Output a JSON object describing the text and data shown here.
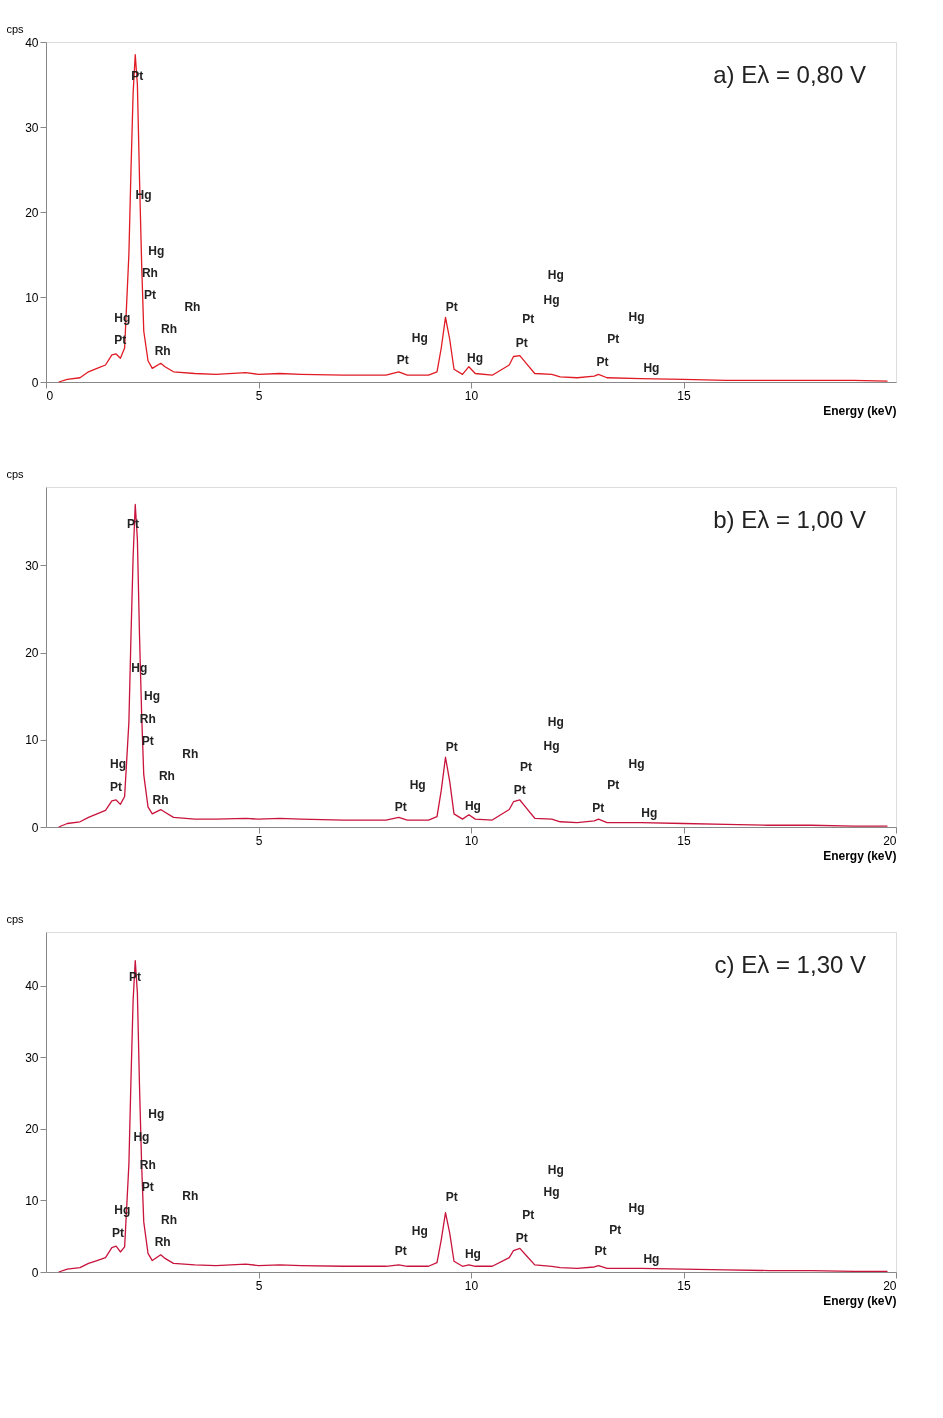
{
  "chart_data": [
    {
      "type": "line",
      "title": "a) Eλ = 0,80 V",
      "xlabel": "Energy (keV)",
      "ylabel": "cps",
      "xlim": [
        0,
        20
      ],
      "xticks": [
        0,
        5,
        10,
        15
      ],
      "ylim": [
        0,
        40
      ],
      "yticks": [
        0,
        10,
        20,
        30,
        40
      ],
      "grid": false,
      "marker": "none",
      "line_style": "solid",
      "series": [
        {
          "color": "#e01b24",
          "x": [
            0.3,
            0.5,
            0.8,
            1.0,
            1.2,
            1.4,
            1.55,
            1.65,
            1.75,
            1.85,
            1.95,
            2.0,
            2.05,
            2.1,
            2.15,
            2.2,
            2.25,
            2.3,
            2.4,
            2.5,
            2.7,
            2.8,
            3.0,
            3.5,
            4.0,
            4.7,
            5.0,
            5.5,
            6.0,
            7.0,
            8.0,
            8.3,
            8.5,
            9.0,
            9.2,
            9.3,
            9.4,
            9.5,
            9.6,
            9.8,
            9.95,
            10.1,
            10.5,
            10.9,
            11.0,
            11.15,
            11.3,
            11.5,
            11.9,
            12.1,
            12.5,
            12.9,
            13.0,
            13.2,
            14.0,
            15.0,
            16.0,
            17.0,
            18.0,
            19.0,
            19.8
          ],
          "values": [
            0,
            0.3,
            0.5,
            1.2,
            1.6,
            2.0,
            3.2,
            3.3,
            2.8,
            4,
            15,
            25,
            34,
            38.5,
            35,
            24,
            14,
            6,
            2.5,
            1.6,
            2.2,
            1.8,
            1.2,
            1.0,
            0.9,
            1.1,
            0.9,
            1.0,
            0.9,
            0.8,
            0.8,
            1.2,
            0.8,
            0.8,
            1.2,
            4,
            7.6,
            5,
            1.5,
            0.9,
            1.8,
            1.0,
            0.8,
            2.0,
            3.0,
            3.1,
            2.2,
            1.0,
            0.9,
            0.6,
            0.5,
            0.7,
            0.9,
            0.5,
            0.4,
            0.3,
            0.2,
            0.2,
            0.2,
            0.2,
            0.1
          ]
        }
      ],
      "annotations": [
        "Pt",
        "Hg",
        "Hg",
        "Rh",
        "Pt",
        "Rh",
        "Hg",
        "Rh",
        "Pt",
        "Rh",
        "Pt",
        "Hg",
        "Pt",
        "Hg",
        "Pt",
        "Pt",
        "Hg",
        "Hg",
        "Pt",
        "Pt",
        "Hg",
        "Hg"
      ]
    },
    {
      "type": "line",
      "title": "b) Eλ = 1,00 V",
      "xlabel": "Energy (keV)",
      "ylabel": "cps",
      "xlim": [
        0,
        20
      ],
      "xticks": [
        5,
        10,
        15,
        20
      ],
      "ylim": [
        0,
        39
      ],
      "yticks": [
        0,
        10,
        20,
        30
      ],
      "grid": false,
      "marker": "none",
      "line_style": "solid",
      "series": [
        {
          "color": "#c8143c",
          "x": [
            0.3,
            0.5,
            0.8,
            1.0,
            1.2,
            1.4,
            1.55,
            1.65,
            1.75,
            1.85,
            1.95,
            2.0,
            2.05,
            2.1,
            2.15,
            2.2,
            2.25,
            2.3,
            2.4,
            2.5,
            2.7,
            2.8,
            3.0,
            3.5,
            4.0,
            4.7,
            5.0,
            5.5,
            6.0,
            7.0,
            8.0,
            8.3,
            8.5,
            9.0,
            9.2,
            9.3,
            9.4,
            9.5,
            9.6,
            9.8,
            9.95,
            10.1,
            10.5,
            10.9,
            11.0,
            11.15,
            11.3,
            11.5,
            11.9,
            12.1,
            12.5,
            12.9,
            13.0,
            13.2,
            14.0,
            15.0,
            16.0,
            17.0,
            18.0,
            19.0,
            19.8
          ],
          "values": [
            0,
            0.4,
            0.6,
            1.1,
            1.5,
            1.9,
            3.0,
            3.1,
            2.6,
            3.5,
            12,
            22,
            31,
            37,
            33,
            22,
            13,
            6,
            2.3,
            1.5,
            2.0,
            1.7,
            1.1,
            0.9,
            0.9,
            1.0,
            0.9,
            1.0,
            0.9,
            0.8,
            0.8,
            1.1,
            0.8,
            0.8,
            1.2,
            4.2,
            8.0,
            5.2,
            1.5,
            0.9,
            1.4,
            0.9,
            0.8,
            2.0,
            2.9,
            3.1,
            2.2,
            1.0,
            0.9,
            0.6,
            0.5,
            0.7,
            0.9,
            0.5,
            0.5,
            0.4,
            0.3,
            0.2,
            0.2,
            0.1,
            0.1
          ]
        }
      ],
      "annotations": [
        "Pt",
        "Hg",
        "Hg",
        "Rh",
        "Pt",
        "Rh",
        "Hg",
        "Rh",
        "Pt",
        "Rh",
        "Pt",
        "Hg",
        "Pt",
        "Hg",
        "Pt",
        "Pt",
        "Hg",
        "Hg",
        "Pt",
        "Pt",
        "Hg",
        "Hg"
      ]
    },
    {
      "type": "line",
      "title": "c) Eλ = 1,30 V",
      "xlabel": "Energy (keV)",
      "ylabel": "cps",
      "xlim": [
        0,
        20
      ],
      "xticks": [
        5,
        10,
        15,
        20
      ],
      "ylim": [
        0,
        47.5
      ],
      "yticks": [
        0,
        10,
        20,
        30,
        40
      ],
      "grid": false,
      "marker": "none",
      "line_style": "solid",
      "series": [
        {
          "color": "#c8143c",
          "x": [
            0.3,
            0.5,
            0.8,
            1.0,
            1.2,
            1.4,
            1.55,
            1.65,
            1.75,
            1.85,
            1.95,
            2.0,
            2.05,
            2.1,
            2.15,
            2.2,
            2.25,
            2.3,
            2.4,
            2.5,
            2.7,
            2.8,
            3.0,
            3.5,
            4.0,
            4.7,
            5.0,
            5.5,
            6.0,
            7.0,
            8.0,
            8.3,
            8.5,
            9.0,
            9.2,
            9.3,
            9.4,
            9.5,
            9.6,
            9.8,
            9.95,
            10.1,
            10.5,
            10.9,
            11.0,
            11.15,
            11.3,
            11.5,
            11.9,
            12.1,
            12.5,
            12.9,
            13.0,
            13.2,
            14.0,
            15.0,
            16.0,
            17.0,
            18.0,
            19.0,
            19.8
          ],
          "values": [
            0,
            0.4,
            0.6,
            1.2,
            1.6,
            2.0,
            3.4,
            3.6,
            2.8,
            3.5,
            15,
            27,
            38,
            43.5,
            39,
            26,
            15,
            7,
            2.6,
            1.6,
            2.4,
            1.9,
            1.2,
            1.0,
            0.9,
            1.1,
            0.9,
            1.0,
            0.9,
            0.8,
            0.8,
            1.0,
            0.8,
            0.8,
            1.3,
            4.5,
            8.3,
            5.4,
            1.5,
            0.8,
            1.0,
            0.8,
            0.8,
            2.0,
            3.0,
            3.3,
            2.3,
            1.0,
            0.8,
            0.6,
            0.5,
            0.7,
            0.9,
            0.5,
            0.5,
            0.4,
            0.3,
            0.2,
            0.2,
            0.1,
            0.1
          ]
        }
      ],
      "annotations": [
        "Pt",
        "Hg",
        "Hg",
        "Rh",
        "Pt",
        "Rh",
        "Hg",
        "Rh",
        "Pt",
        "Rh",
        "Pt",
        "Hg",
        "Pt",
        "Hg",
        "Pt",
        "Pt",
        "Hg",
        "Hg",
        "Pt",
        "Pt",
        "Hg",
        "Hg"
      ]
    }
  ]
}
